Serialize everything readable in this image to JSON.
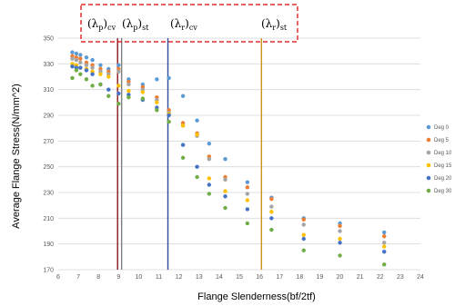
{
  "chart_data": {
    "type": "scatter",
    "xlabel": "Flange Slenderness(bf/2tf)",
    "ylabel": "Average Flange Stress(N/mm^2)",
    "xlim": [
      6,
      24
    ],
    "ylim": [
      170,
      350
    ],
    "x_ticks": [
      "6",
      "7",
      "8",
      "9",
      "10",
      "11",
      "12",
      "13",
      "14",
      "15",
      "16",
      "17",
      "18",
      "19",
      "20",
      "21",
      "22",
      "23",
      "24"
    ],
    "y_ticks": [
      "170",
      "190",
      "210",
      "230",
      "250",
      "270",
      "290",
      "310",
      "330",
      "350"
    ],
    "grid": "horizontal",
    "legend_position": "right",
    "series": [
      {
        "name": "Deg 0",
        "color": "#5b9bd5",
        "points": [
          [
            6.7,
            339
          ],
          [
            6.9,
            338
          ],
          [
            7.1,
            337
          ],
          [
            7.4,
            335
          ],
          [
            7.7,
            333
          ],
          [
            8.1,
            329
          ],
          [
            8.5,
            326
          ],
          [
            9.0,
            329
          ],
          [
            9.5,
            318
          ],
          [
            10.2,
            314
          ],
          [
            10.9,
            318
          ],
          [
            11.5,
            319
          ],
          [
            12.2,
            305
          ],
          [
            12.9,
            286
          ],
          [
            13.5,
            268
          ],
          [
            14.3,
            256
          ],
          [
            15.4,
            238
          ],
          [
            16.6,
            226
          ],
          [
            18.2,
            210
          ],
          [
            20.0,
            206
          ],
          [
            22.2,
            199
          ]
        ]
      },
      {
        "name": "Deg 5",
        "color": "#ed7d31",
        "points": [
          [
            6.7,
            336
          ],
          [
            6.9,
            335
          ],
          [
            7.1,
            334
          ],
          [
            7.4,
            331
          ],
          [
            7.7,
            329
          ],
          [
            8.1,
            326
          ],
          [
            8.5,
            324
          ],
          [
            9.0,
            326
          ],
          [
            9.5,
            316
          ],
          [
            10.2,
            312
          ],
          [
            10.9,
            304
          ],
          [
            11.5,
            294
          ],
          [
            12.2,
            284
          ],
          [
            12.9,
            276
          ],
          [
            13.5,
            258
          ],
          [
            14.3,
            242
          ],
          [
            15.4,
            234
          ],
          [
            16.6,
            225
          ],
          [
            18.2,
            209
          ],
          [
            20.0,
            204
          ],
          [
            22.2,
            196
          ]
        ]
      },
      {
        "name": "Deg 10",
        "color": "#a5a5a5",
        "points": [
          [
            6.7,
            334
          ],
          [
            6.9,
            333
          ],
          [
            7.1,
            331
          ],
          [
            7.4,
            329
          ],
          [
            7.7,
            327
          ],
          [
            8.1,
            324
          ],
          [
            8.5,
            322
          ],
          [
            9.0,
            324
          ],
          [
            9.5,
            314
          ],
          [
            10.2,
            310
          ],
          [
            10.9,
            302
          ],
          [
            11.5,
            292
          ],
          [
            12.2,
            282
          ],
          [
            12.9,
            274
          ],
          [
            13.5,
            256
          ],
          [
            14.3,
            240
          ],
          [
            15.4,
            229
          ],
          [
            16.6,
            219
          ],
          [
            18.2,
            205
          ],
          [
            20.0,
            200
          ],
          [
            22.2,
            191
          ]
        ]
      },
      {
        "name": "Deg 15",
        "color": "#ffc000",
        "points": [
          [
            6.7,
            330
          ],
          [
            6.9,
            329
          ],
          [
            7.1,
            327
          ],
          [
            7.4,
            326
          ],
          [
            7.7,
            324
          ],
          [
            8.1,
            322
          ],
          [
            8.5,
            320
          ],
          [
            9.0,
            313
          ],
          [
            9.5,
            309
          ],
          [
            10.2,
            308
          ],
          [
            10.9,
            300
          ],
          [
            11.5,
            291
          ],
          [
            12.2,
            282
          ],
          [
            12.9,
            275
          ],
          [
            13.5,
            241
          ],
          [
            14.3,
            231
          ],
          [
            15.4,
            224
          ],
          [
            16.6,
            215
          ],
          [
            18.2,
            197
          ],
          [
            20.0,
            194
          ],
          [
            22.2,
            188
          ]
        ]
      },
      {
        "name": "Deg 20",
        "color": "#4472c4",
        "points": [
          [
            6.7,
            328
          ],
          [
            6.9,
            327
          ],
          [
            7.1,
            327
          ],
          [
            7.4,
            325
          ],
          [
            7.7,
            322
          ],
          [
            8.1,
            314
          ],
          [
            8.5,
            310
          ],
          [
            9.0,
            307
          ],
          [
            9.5,
            306
          ],
          [
            10.2,
            302
          ],
          [
            10.9,
            296
          ],
          [
            11.5,
            290
          ],
          [
            12.2,
            267
          ],
          [
            12.9,
            250
          ],
          [
            13.5,
            236
          ],
          [
            14.3,
            227
          ],
          [
            15.4,
            217
          ],
          [
            16.6,
            210
          ],
          [
            18.2,
            194
          ],
          [
            20.0,
            191
          ],
          [
            22.2,
            184
          ]
        ]
      },
      {
        "name": "Deg 30",
        "color": "#70ad47",
        "points": [
          [
            6.7,
            319
          ],
          [
            6.9,
            325
          ],
          [
            7.1,
            322
          ],
          [
            7.4,
            318
          ],
          [
            7.7,
            313
          ],
          [
            8.1,
            314
          ],
          [
            8.5,
            305
          ],
          [
            9.0,
            299
          ],
          [
            9.5,
            304
          ],
          [
            10.2,
            303
          ],
          [
            10.9,
            294
          ],
          [
            11.5,
            285
          ],
          [
            12.2,
            257
          ],
          [
            12.9,
            242
          ],
          [
            13.5,
            229
          ],
          [
            14.3,
            218
          ],
          [
            15.4,
            206
          ],
          [
            16.6,
            201
          ],
          [
            18.2,
            185
          ],
          [
            20.0,
            181
          ],
          [
            22.2,
            174
          ]
        ]
      }
    ],
    "vlines": [
      {
        "x": 8.95,
        "color": "#8b1a1a",
        "label": "(λp)cv"
      },
      {
        "x": 9.15,
        "color": "#7f7f7f",
        "label": "(λp)st"
      },
      {
        "x": 11.45,
        "color": "#2f4f9f",
        "label": "(λr)cv"
      },
      {
        "x": 16.1,
        "color": "#c8941c",
        "label": "(λr)st"
      }
    ]
  }
}
